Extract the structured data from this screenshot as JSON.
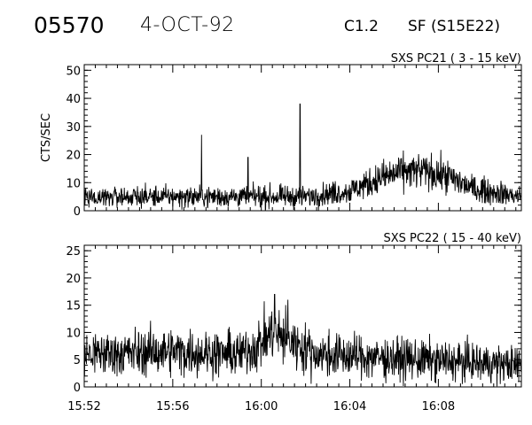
{
  "header": {
    "event_id": "05570",
    "date": "4-OCT-92",
    "flare_class": "C1.2",
    "flare_location": "SF (S15E22)"
  },
  "chart_data": [
    {
      "type": "line",
      "title": "SXS PC21  (  3 - 15 keV)",
      "ylabel": "CTS/SEC",
      "xlabel": "",
      "x_range": [
        "15:52",
        "16:11:45"
      ],
      "ylim": [
        0,
        52
      ],
      "yticks": [
        "0",
        "10",
        "20",
        "30",
        "40",
        "50"
      ],
      "baseline": [
        [
          0,
          5
        ],
        [
          4,
          5
        ],
        [
          10,
          5
        ],
        [
          12,
          7
        ],
        [
          13.5,
          12
        ],
        [
          14.5,
          14
        ],
        [
          15.5,
          14
        ],
        [
          16.5,
          12
        ],
        [
          17.5,
          8
        ],
        [
          19.75,
          5
        ]
      ],
      "spikes": [
        [
          5.3,
          27
        ],
        [
          9.75,
          38
        ],
        [
          7.4,
          19
        ]
      ]
    },
    {
      "type": "line",
      "title": "SXS PC22  ( 15 - 40 keV)",
      "ylabel": "",
      "xlabel": "",
      "x_range": [
        "15:52",
        "16:11:45"
      ],
      "ylim": [
        0,
        26
      ],
      "yticks": [
        "0",
        "5",
        "10",
        "15",
        "20",
        "25"
      ],
      "baseline": [
        [
          0,
          6
        ],
        [
          4,
          6.5
        ],
        [
          7,
          6
        ],
        [
          7.8,
          7.5
        ],
        [
          8.5,
          10
        ],
        [
          9.5,
          8
        ],
        [
          10.5,
          6
        ],
        [
          15,
          5
        ],
        [
          19.75,
          4
        ]
      ],
      "spikes": [
        [
          8.6,
          17
        ],
        [
          9.2,
          16
        ]
      ],
      "xticks": [
        "15:52",
        "15:56",
        "16:00",
        "16:04",
        "16:08"
      ]
    }
  ]
}
